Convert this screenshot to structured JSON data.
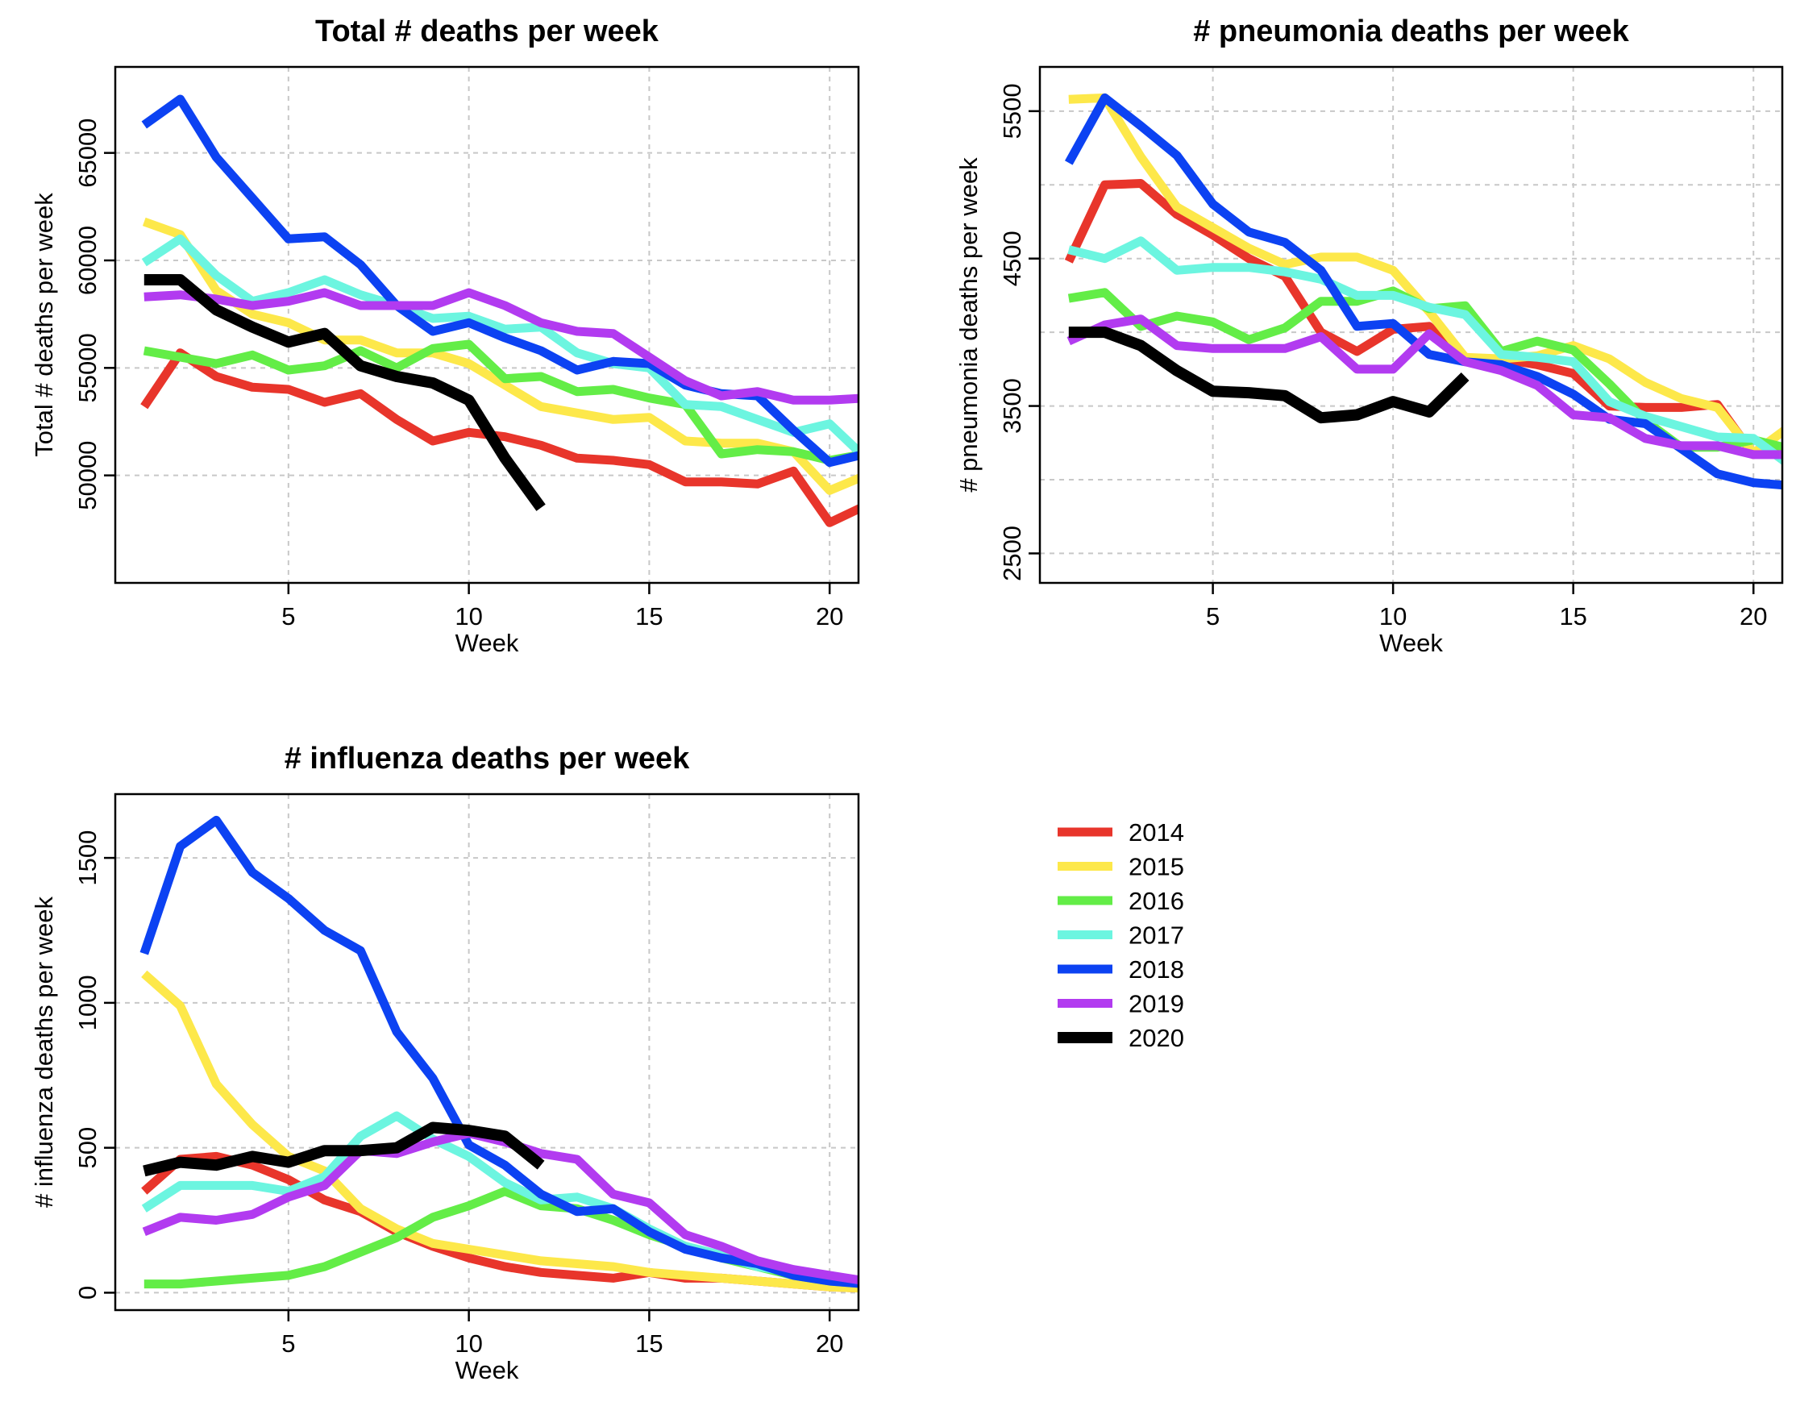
{
  "chart_data": [
    {
      "type": "line",
      "title": "Total # deaths per week",
      "xlabel": "Week",
      "ylabel": "Total # deaths per week",
      "xlim": [
        0.2,
        20.8
      ],
      "ylim": [
        45000,
        69000
      ],
      "xticks": [
        5,
        10,
        15,
        20
      ],
      "yticks": [
        50000,
        55000,
        60000,
        65000
      ],
      "grid": true,
      "series": [
        {
          "name": "2014",
          "color": "#e8352b",
          "x": [
            1,
            2,
            3,
            4,
            5,
            6,
            7,
            8,
            9,
            10,
            11,
            12,
            13,
            14,
            15,
            16,
            17,
            18,
            19,
            20,
            21
          ],
          "values": [
            53200,
            55700,
            54600,
            54100,
            54000,
            53400,
            53800,
            52600,
            51600,
            52000,
            51800,
            51400,
            50800,
            50700,
            50500,
            49700,
            49700,
            49600,
            50200,
            47800,
            48600
          ]
        },
        {
          "name": "2015",
          "color": "#fde84a",
          "x": [
            1,
            2,
            3,
            4,
            5,
            6,
            7,
            8,
            9,
            10,
            11,
            12,
            13,
            14,
            15,
            16,
            17,
            18,
            19,
            20,
            21
          ],
          "values": [
            61800,
            61200,
            58600,
            57500,
            57100,
            56300,
            56300,
            55700,
            55700,
            55200,
            54200,
            53200,
            52900,
            52600,
            52700,
            51600,
            51500,
            51500,
            51100,
            49300,
            50000
          ]
        },
        {
          "name": "2016",
          "color": "#63ed47",
          "x": [
            1,
            2,
            3,
            4,
            5,
            6,
            7,
            8,
            9,
            10,
            11,
            12,
            13,
            14,
            15,
            16,
            17,
            18,
            19,
            20,
            21
          ],
          "values": [
            55800,
            55500,
            55200,
            55600,
            54900,
            55100,
            55800,
            55000,
            55900,
            56100,
            54500,
            54600,
            53900,
            54000,
            53600,
            53300,
            51000,
            51200,
            51100,
            50700,
            51000
          ]
        },
        {
          "name": "2017",
          "color": "#6cf5e0",
          "x": [
            1,
            2,
            3,
            4,
            5,
            6,
            7,
            8,
            9,
            10,
            11,
            12,
            13,
            14,
            15,
            16,
            17,
            18,
            19,
            20,
            21
          ],
          "values": [
            59900,
            61000,
            59300,
            58100,
            58500,
            59100,
            58400,
            57900,
            57300,
            57400,
            56800,
            56900,
            55700,
            55200,
            55000,
            53300,
            53200,
            52600,
            52000,
            52400,
            50800
          ]
        },
        {
          "name": "2018",
          "color": "#0c42f2",
          "x": [
            1,
            2,
            3,
            4,
            5,
            6,
            7,
            8,
            9,
            10,
            11,
            12,
            13,
            14,
            15,
            16,
            17,
            18,
            19,
            20,
            21
          ],
          "values": [
            66300,
            67500,
            64800,
            62900,
            61000,
            61100,
            59800,
            57900,
            56700,
            57100,
            56400,
            55800,
            54900,
            55300,
            55200,
            54200,
            53800,
            53700,
            52100,
            50600,
            51000
          ]
        },
        {
          "name": "2019",
          "color": "#b23bf0",
          "x": [
            1,
            2,
            3,
            4,
            5,
            6,
            7,
            8,
            9,
            10,
            11,
            12,
            13,
            14,
            15,
            16,
            17,
            18,
            19,
            20,
            21
          ],
          "values": [
            58300,
            58400,
            58200,
            57900,
            58100,
            58500,
            57900,
            57900,
            57900,
            58500,
            57900,
            57100,
            56700,
            56600,
            55500,
            54400,
            53700,
            53900,
            53500,
            53500,
            53600
          ]
        },
        {
          "name": "2020",
          "color": "#000000",
          "x": [
            1,
            2,
            3,
            4,
            5,
            6,
            7,
            8,
            9,
            10,
            11,
            12
          ],
          "values": [
            59100,
            59100,
            57700,
            56900,
            56200,
            56600,
            55100,
            54600,
            54300,
            53500,
            50800,
            48500
          ]
        }
      ]
    },
    {
      "type": "line",
      "title": "# pneumonia deaths per week",
      "xlabel": "Week",
      "ylabel": "# pneumonia deaths per week",
      "xlim": [
        0.2,
        20.8
      ],
      "ylim": [
        2300,
        5800
      ],
      "xticks": [
        5,
        10,
        15,
        20
      ],
      "yticks": [
        2500,
        3500,
        4500,
        5500
      ],
      "yticks_minor": [
        3000,
        4000,
        5000
      ],
      "grid": true,
      "series": [
        {
          "name": "2014",
          "color": "#e8352b",
          "x": [
            1,
            2,
            3,
            4,
            5,
            6,
            7,
            8,
            9,
            10,
            11,
            12,
            13,
            14,
            15,
            16,
            17,
            18,
            19,
            20,
            21
          ],
          "values": [
            4480,
            5000,
            5010,
            4800,
            4660,
            4500,
            4380,
            4000,
            3870,
            4020,
            4040,
            3820,
            3820,
            3780,
            3720,
            3500,
            3490,
            3490,
            3510,
            3170,
            3220
          ]
        },
        {
          "name": "2015",
          "color": "#fde84a",
          "x": [
            1,
            2,
            3,
            4,
            5,
            6,
            7,
            8,
            9,
            10,
            11,
            12,
            13,
            14,
            15,
            16,
            17,
            18,
            19,
            20,
            21
          ],
          "values": [
            5580,
            5590,
            5190,
            4850,
            4710,
            4570,
            4460,
            4510,
            4510,
            4420,
            4140,
            3830,
            3820,
            3840,
            3910,
            3820,
            3660,
            3550,
            3490,
            3180,
            3360
          ]
        },
        {
          "name": "2016",
          "color": "#63ed47",
          "x": [
            1,
            2,
            3,
            4,
            5,
            6,
            7,
            8,
            9,
            10,
            11,
            12,
            13,
            14,
            15,
            16,
            17,
            18,
            19,
            20,
            21
          ],
          "values": [
            4230,
            4270,
            4040,
            4110,
            4070,
            3950,
            4030,
            4210,
            4210,
            4280,
            4160,
            4180,
            3870,
            3940,
            3880,
            3650,
            3400,
            3220,
            3220,
            3270,
            3210
          ]
        },
        {
          "name": "2017",
          "color": "#6cf5e0",
          "x": [
            1,
            2,
            3,
            4,
            5,
            6,
            7,
            8,
            9,
            10,
            11,
            12,
            13,
            14,
            15,
            16,
            17,
            18,
            19,
            20,
            21
          ],
          "values": [
            4560,
            4500,
            4620,
            4420,
            4440,
            4440,
            4410,
            4360,
            4250,
            4250,
            4170,
            4120,
            3850,
            3830,
            3800,
            3530,
            3430,
            3360,
            3290,
            3280,
            3100
          ]
        },
        {
          "name": "2018",
          "color": "#0c42f2",
          "x": [
            1,
            2,
            3,
            4,
            5,
            6,
            7,
            8,
            9,
            10,
            11,
            12,
            13,
            14,
            15,
            16,
            17,
            18,
            19,
            20,
            21
          ],
          "values": [
            5150,
            5590,
            5400,
            5200,
            4870,
            4680,
            4610,
            4420,
            4040,
            4060,
            3850,
            3800,
            3780,
            3700,
            3580,
            3410,
            3380,
            3210,
            3040,
            2980,
            2960
          ]
        },
        {
          "name": "2019",
          "color": "#b23bf0",
          "x": [
            1,
            2,
            3,
            4,
            5,
            6,
            7,
            8,
            9,
            10,
            11,
            12,
            13,
            14,
            15,
            16,
            17,
            18,
            19,
            20,
            21
          ],
          "values": [
            3940,
            4050,
            4090,
            3910,
            3890,
            3890,
            3890,
            3970,
            3750,
            3750,
            3990,
            3800,
            3740,
            3640,
            3440,
            3420,
            3280,
            3230,
            3230,
            3170,
            3170
          ]
        },
        {
          "name": "2020",
          "color": "#000000",
          "x": [
            1,
            2,
            3,
            4,
            5,
            6,
            7,
            8,
            9,
            10,
            11,
            12
          ],
          "values": [
            4000,
            4000,
            3910,
            3740,
            3600,
            3590,
            3570,
            3420,
            3440,
            3530,
            3460,
            3700
          ]
        }
      ]
    },
    {
      "type": "line",
      "title": "# influenza deaths per week",
      "xlabel": "Week",
      "ylabel": "# influenza deaths per week",
      "xlim": [
        0.2,
        20.8
      ],
      "ylim": [
        -60,
        1720
      ],
      "xticks": [
        5,
        10,
        15,
        20
      ],
      "yticks": [
        0,
        500,
        1000,
        1500
      ],
      "grid": true,
      "series": [
        {
          "name": "2014",
          "color": "#e8352b",
          "x": [
            1,
            2,
            3,
            4,
            5,
            6,
            7,
            8,
            9,
            10,
            11,
            12,
            13,
            14,
            15,
            16,
            17,
            18,
            19,
            20,
            21
          ],
          "values": [
            350,
            460,
            470,
            440,
            390,
            320,
            280,
            210,
            160,
            120,
            90,
            70,
            60,
            50,
            70,
            50,
            50,
            40,
            30,
            20,
            15
          ]
        },
        {
          "name": "2015",
          "color": "#fde84a",
          "x": [
            1,
            2,
            3,
            4,
            5,
            6,
            7,
            8,
            9,
            10,
            11,
            12,
            13,
            14,
            15,
            16,
            17,
            18,
            19,
            20,
            21
          ],
          "values": [
            1100,
            990,
            720,
            580,
            470,
            420,
            290,
            220,
            170,
            150,
            130,
            110,
            100,
            90,
            70,
            60,
            50,
            40,
            30,
            20,
            15
          ]
        },
        {
          "name": "2016",
          "color": "#63ed47",
          "x": [
            1,
            2,
            3,
            4,
            5,
            6,
            7,
            8,
            9,
            10,
            11,
            12,
            13,
            14,
            15,
            16,
            17,
            18,
            19,
            20,
            21
          ],
          "values": [
            30,
            30,
            40,
            50,
            60,
            90,
            140,
            190,
            260,
            300,
            350,
            300,
            290,
            250,
            200,
            160,
            120,
            90,
            60,
            40,
            30
          ]
        },
        {
          "name": "2017",
          "color": "#6cf5e0",
          "x": [
            1,
            2,
            3,
            4,
            5,
            6,
            7,
            8,
            9,
            10,
            11,
            12,
            13,
            14,
            15,
            16,
            17,
            18,
            19,
            20,
            21
          ],
          "values": [
            290,
            370,
            370,
            370,
            350,
            400,
            540,
            610,
            530,
            470,
            380,
            320,
            330,
            290,
            220,
            160,
            130,
            90,
            70,
            50,
            30
          ]
        },
        {
          "name": "2018",
          "color": "#0c42f2",
          "x": [
            1,
            2,
            3,
            4,
            5,
            6,
            7,
            8,
            9,
            10,
            11,
            12,
            13,
            14,
            15,
            16,
            17,
            18,
            19,
            20,
            21
          ],
          "values": [
            1170,
            1540,
            1630,
            1450,
            1360,
            1250,
            1180,
            900,
            740,
            510,
            440,
            340,
            280,
            290,
            210,
            150,
            120,
            100,
            60,
            40,
            30
          ]
        },
        {
          "name": "2019",
          "color": "#b23bf0",
          "x": [
            1,
            2,
            3,
            4,
            5,
            6,
            7,
            8,
            9,
            10,
            11,
            12,
            13,
            14,
            15,
            16,
            17,
            18,
            19,
            20,
            21
          ],
          "values": [
            210,
            260,
            250,
            270,
            330,
            370,
            490,
            480,
            520,
            550,
            520,
            480,
            460,
            340,
            310,
            200,
            160,
            110,
            80,
            60,
            40
          ]
        },
        {
          "name": "2020",
          "color": "#000000",
          "x": [
            1,
            2,
            3,
            4,
            5,
            6,
            7,
            8,
            9,
            10,
            11,
            12
          ],
          "values": [
            420,
            450,
            440,
            470,
            450,
            490,
            490,
            500,
            570,
            560,
            540,
            440
          ]
        }
      ]
    }
  ],
  "legend": {
    "items": [
      {
        "label": "2014",
        "color": "#e8352b"
      },
      {
        "label": "2015",
        "color": "#fde84a"
      },
      {
        "label": "2016",
        "color": "#63ed47"
      },
      {
        "label": "2017",
        "color": "#6cf5e0"
      },
      {
        "label": "2018",
        "color": "#0c42f2"
      },
      {
        "label": "2019",
        "color": "#b23bf0"
      },
      {
        "label": "2020",
        "color": "#000000"
      }
    ]
  }
}
